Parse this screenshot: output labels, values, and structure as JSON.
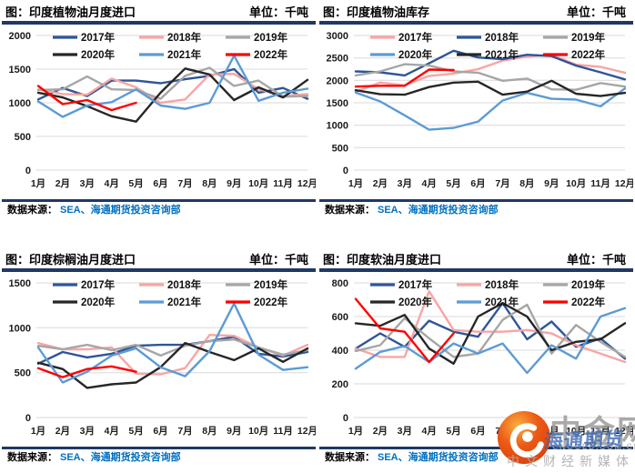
{
  "colors": {
    "divider": "#203864",
    "source": "#0070C0",
    "grid": "#d9d9d9",
    "logo_orange": "#f9a13a",
    "logo_red": "#e0420e"
  },
  "watermark": {
    "brand": "中金网",
    "brand_sub": "CNGOLD.COM.CN",
    "tagline": "中文财经新媒体",
    "overlay": "海通期货"
  },
  "panels": [
    {
      "title": "图：印度植物油月度进口",
      "unit": "单位：千吨",
      "source_prefix": "数据来源：",
      "source_body": "SEA、海通期货投资咨询部",
      "chart_data": {
        "type": "line",
        "title": "印度植物油月度进口",
        "ylabel": "千吨",
        "ylim": [
          0,
          2000
        ],
        "yticks": [
          0,
          500,
          1000,
          1500,
          2000
        ],
        "grid": "horizontal",
        "legend_position": "top-inside",
        "categories": [
          "1月",
          "2月",
          "3月",
          "4月",
          "5月",
          "6月",
          "7月",
          "8月",
          "9月",
          "10月",
          "11月",
          "12月"
        ],
        "series": [
          {
            "name": "2017年",
            "color": "#2F5597",
            "values": [
              1050,
              1220,
              1100,
              1330,
              1330,
              1290,
              1350,
              1400,
              1500,
              1150,
              1220,
              1060
            ]
          },
          {
            "name": "2018年",
            "color": "#F8A5A5",
            "values": [
              1200,
              1130,
              1120,
              1360,
              1230,
              1000,
              1050,
              1420,
              1430,
              1200,
              1100,
              1130
            ]
          },
          {
            "name": "2019年",
            "color": "#A6A6A6",
            "values": [
              1190,
              1200,
              1390,
              1200,
              1190,
              1060,
              1400,
              1520,
              1250,
              1330,
              1090,
              1100
            ]
          },
          {
            "name": "2020年",
            "color": "#262626",
            "values": [
              1150,
              1080,
              950,
              800,
              720,
              1150,
              1510,
              1420,
              1040,
              1230,
              1080,
              1340
            ]
          },
          {
            "name": "2021年",
            "color": "#5B9BD5",
            "values": [
              1020,
              790,
              960,
              1010,
              1200,
              960,
              910,
              1000,
              1700,
              1030,
              1150,
              1210
            ]
          },
          {
            "name": "2022年",
            "color": "#FF0000",
            "values": [
              1250,
              980,
              1040,
              890,
              1000
            ]
          }
        ]
      }
    },
    {
      "title": "图：印度植物油库存",
      "unit": "单位：千吨",
      "source_prefix": "数据来源：",
      "source_body": "SEA、海通期货投资咨询部",
      "chart_data": {
        "type": "line",
        "title": "印度植物油库存",
        "ylabel": "千吨",
        "ylim": [
          0,
          3000
        ],
        "yticks": [
          0,
          500,
          1000,
          1500,
          2000,
          2500,
          3000
        ],
        "grid": "horizontal",
        "legend_position": "top-inside",
        "categories": [
          "1月",
          "2月",
          "3月",
          "4月",
          "5月",
          "6月",
          "7月",
          "8月",
          "9月",
          "10月",
          "11月",
          "12月"
        ],
        "series": [
          {
            "name": "2017年",
            "color": "#F8A5A5",
            "values": [
              1750,
              1950,
              1890,
              2100,
              2150,
              2250,
              2440,
              2530,
              2570,
              2350,
              2300,
              2170
            ]
          },
          {
            "name": "2018年",
            "color": "#2F5597",
            "values": [
              2200,
              2180,
              2110,
              2380,
              2660,
              2510,
              2470,
              2570,
              2540,
              2330,
              2180,
              2020
            ]
          },
          {
            "name": "2019年",
            "color": "#A6A6A6",
            "values": [
              2110,
              2200,
              2360,
              2330,
              2200,
              2170,
              1990,
              2040,
              1800,
              1790,
              1940,
              1860
            ]
          },
          {
            "name": "2020年",
            "color": "#5B9BD5",
            "values": [
              1730,
              1530,
              1220,
              900,
              940,
              1080,
              1550,
              1720,
              1590,
              1570,
              1420,
              1820
            ]
          },
          {
            "name": "2021年",
            "color": "#262626",
            "values": [
              1780,
              1690,
              1680,
              1850,
              1950,
              1970,
              1680,
              1750,
              1990,
              1700,
              1650,
              1720
            ]
          },
          {
            "name": "2022年",
            "color": "#FF0000",
            "values": [
              1860,
              1880,
              1880,
              2240,
              2230
            ]
          }
        ]
      }
    },
    {
      "title": "图：印度棕榈油月度进口",
      "unit": "单位：千吨",
      "source_prefix": "数据来源：",
      "source_body": "SEA、海通期货投资咨询部",
      "chart_data": {
        "type": "line",
        "title": "印度棕榈油月度进口",
        "ylabel": "千吨",
        "ylim": [
          0,
          1500
        ],
        "yticks": [
          0,
          500,
          1000,
          1500
        ],
        "grid": "horizontal",
        "legend_position": "top-inside",
        "categories": [
          "1月",
          "2月",
          "3月",
          "4月",
          "5月",
          "6月",
          "7月",
          "8月",
          "9月",
          "10月",
          "11月",
          "12月"
        ],
        "series": [
          {
            "name": "2017年",
            "color": "#2F5597",
            "values": [
              600,
              730,
              670,
              710,
              800,
              810,
              810,
              850,
              900,
              710,
              680,
              730
            ]
          },
          {
            "name": "2018年",
            "color": "#F8A5A5",
            "values": [
              830,
              760,
              760,
              780,
              490,
              480,
              550,
              920,
              910,
              780,
              690,
              810
            ]
          },
          {
            "name": "2019年",
            "color": "#A6A6A6",
            "values": [
              800,
              760,
              810,
              750,
              810,
              690,
              800,
              850,
              870,
              780,
              700,
              750
            ]
          },
          {
            "name": "2020年",
            "color": "#262626",
            "values": [
              610,
              540,
              330,
              370,
              390,
              560,
              830,
              730,
              640,
              770,
              620,
              770
            ]
          },
          {
            "name": "2021年",
            "color": "#5B9BD5",
            "values": [
              780,
              390,
              510,
              690,
              770,
              560,
              460,
              740,
              1270,
              700,
              530,
              560
            ]
          },
          {
            "name": "2022年",
            "color": "#FF0000",
            "values": [
              550,
              450,
              540,
              570,
              510
            ]
          }
        ]
      }
    },
    {
      "title": "图：印度软油月度进口",
      "unit": "单位：千吨",
      "source_prefix": "数据来源：",
      "source_body": "SEA、海通期货投资咨询部",
      "chart_data": {
        "type": "line",
        "title": "印度软油月度进口",
        "ylabel": "千吨",
        "ylim": [
          0,
          800
        ],
        "yticks": [
          0,
          200,
          400,
          600,
          800
        ],
        "grid": "horizontal",
        "legend_position": "top-inside",
        "categories": [
          "1月",
          "2月",
          "3月",
          "4月",
          "5月",
          "6月",
          "7月",
          "8月",
          "9月",
          "10月",
          "11月",
          "12月"
        ],
        "series": [
          {
            "name": "2017年",
            "color": "#2F5597",
            "values": [
              410,
              500,
              420,
              575,
              510,
              480,
              680,
              465,
              570,
              420,
              470,
              350
            ]
          },
          {
            "name": "2018年",
            "color": "#F8A5A5",
            "values": [
              410,
              360,
              360,
              750,
              520,
              510,
              510,
              520,
              500,
              430,
              380,
              330
            ]
          },
          {
            "name": "2019年",
            "color": "#A6A6A6",
            "values": [
              395,
              430,
              590,
              470,
              360,
              380,
              580,
              670,
              380,
              550,
              450,
              360
            ]
          },
          {
            "name": "2020年",
            "color": "#262626",
            "values": [
              560,
              545,
              610,
              410,
              320,
              600,
              680,
              600,
              400,
              450,
              465,
              560
            ]
          },
          {
            "name": "2021年",
            "color": "#5B9BD5",
            "values": [
              290,
              390,
              425,
              330,
              440,
              380,
              440,
              265,
              430,
              350,
              600,
              650
            ]
          },
          {
            "name": "2022年",
            "color": "#FF0000",
            "values": [
              705,
              530,
              510,
              330,
              500
            ]
          }
        ]
      }
    }
  ]
}
